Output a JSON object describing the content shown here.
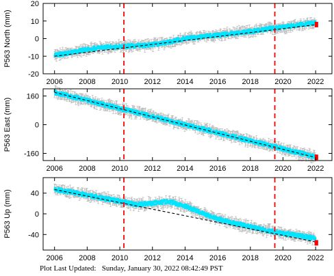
{
  "footer": {
    "label": "Plot Last Updated:",
    "timestamp": "Sunday, January 30, 2022 08:42:49 PST"
  },
  "colors": {
    "data": "#00e5ff",
    "error_bars": "#b0b0b0",
    "trend": "#000000",
    "events": "#ff0000",
    "latest": "#ff0000"
  },
  "chart_data": [
    {
      "type": "line",
      "ylabel": "P563 North (mm)",
      "xlim": [
        2005.3,
        2023.0
      ],
      "ylim": [
        -20,
        20
      ],
      "yticks": [
        -20,
        -10,
        0,
        10,
        20
      ],
      "xticks": [
        2006,
        2008,
        2010,
        2012,
        2014,
        2016,
        2018,
        2020,
        2022
      ],
      "event_lines": [
        2010.25,
        2019.5
      ],
      "trend": {
        "x": [
          2006.0,
          2022.1
        ],
        "y": [
          -10.0,
          8.0
        ]
      },
      "series": [
        {
          "x": [
            2006.0,
            2007.0,
            2008.0,
            2009.0,
            2010.0,
            2011.0,
            2012.0,
            2013.0,
            2014.0,
            2015.0,
            2016.0,
            2017.0,
            2018.0,
            2019.0,
            2020.0,
            2021.0,
            2022.0
          ],
          "y": [
            -9.5,
            -8.0,
            -6.0,
            -5.0,
            -4.5,
            -4.0,
            -3.5,
            -2.0,
            0.0,
            1.0,
            2.0,
            3.0,
            4.0,
            5.5,
            6.5,
            8.0,
            9.0
          ]
        }
      ],
      "latest": {
        "x": 2022.05,
        "y": 8.0
      }
    },
    {
      "type": "line",
      "ylabel": "P563 East (mm)",
      "xlim": [
        2005.3,
        2023.0
      ],
      "ylim": [
        -200,
        200
      ],
      "yticks": [
        -160,
        0,
        160
      ],
      "xticks": [
        2006,
        2008,
        2010,
        2012,
        2014,
        2016,
        2018,
        2020,
        2022
      ],
      "event_lines": [
        2010.25,
        2019.5
      ],
      "trend": {
        "x": [
          2006.0,
          2022.1
        ],
        "y": [
          180.0,
          -185.0
        ]
      },
      "series": [
        {
          "x": [
            2006.0,
            2008.0,
            2010.0,
            2012.0,
            2014.0,
            2016.0,
            2018.0,
            2020.0,
            2022.0
          ],
          "y": [
            180.0,
            135.0,
            90.0,
            45.0,
            0.0,
            -45.0,
            -90.0,
            -135.0,
            -180.0
          ]
        }
      ],
      "latest": {
        "x": 2022.05,
        "y": -182.0
      }
    },
    {
      "type": "line",
      "ylabel": "P563 Up (mm)",
      "xlim": [
        2005.3,
        2023.0
      ],
      "ylim": [
        -70,
        70
      ],
      "yticks": [
        -40,
        0,
        40
      ],
      "xticks": [
        2006,
        2008,
        2010,
        2012,
        2014,
        2016,
        2018,
        2020,
        2022
      ],
      "event_lines": [
        2010.25,
        2019.5
      ],
      "trend": {
        "x": [
          2006.0,
          2022.1
        ],
        "y": [
          47.0,
          -55.0
        ]
      },
      "series": [
        {
          "x": [
            2006.0,
            2007.0,
            2008.0,
            2009.0,
            2010.0,
            2011.0,
            2012.0,
            2013.0,
            2014.0,
            2015.0,
            2016.0,
            2017.0,
            2018.0,
            2019.0,
            2020.0,
            2021.0,
            2022.0
          ],
          "y": [
            47.0,
            42.0,
            36.0,
            30.0,
            24.0,
            18.0,
            20.0,
            24.0,
            15.0,
            2.0,
            -10.0,
            -18.0,
            -25.0,
            -32.0,
            -38.0,
            -42.0,
            -48.0
          ]
        }
      ],
      "latest": {
        "x": 2022.05,
        "y": -56.0
      }
    }
  ]
}
